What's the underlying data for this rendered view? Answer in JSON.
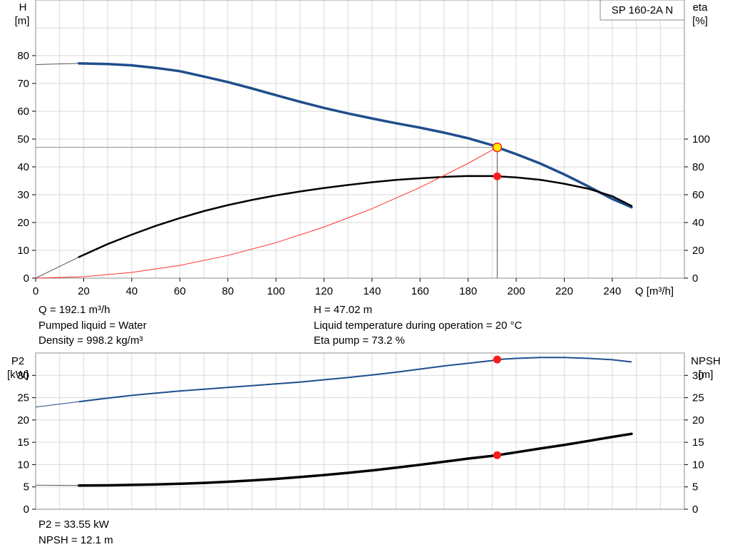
{
  "product_label": "SP 160-2A N",
  "colors": {
    "head_curve": "#1f4e8c",
    "p2_curve": "#1f4e8c",
    "efficiency_curve": "#000000",
    "npsh_curve": "#000000",
    "system_curve": "#ff3030",
    "duty_marker": "#ff1a1a",
    "duty_head_marker_fill": "#ffee00",
    "grid": "#d9d9d9",
    "frame": "#8c8c8c"
  },
  "top_info": {
    "left": [
      "Q = 192.1 m³/h",
      "Pumped liquid = Water",
      "Density = 998.2 kg/m³"
    ],
    "right": [
      "H = 47.02 m",
      "Liquid temperature during operation = 20 °C",
      "Eta pump = 73.2 %"
    ]
  },
  "bottom_info": [
    "P2 = 33.55 kW",
    "NPSH = 12.1 m"
  ],
  "chart_data": [
    {
      "type": "line",
      "panel": "upper",
      "x_axis": {
        "label": "Q [m³/h]",
        "lim": [
          0,
          270
        ],
        "ticks": [
          0,
          20,
          40,
          60,
          80,
          100,
          120,
          140,
          160,
          180,
          200,
          220,
          240
        ]
      },
      "y_axis_left": {
        "label": [
          "H",
          "[m]"
        ],
        "lim": [
          0,
          100
        ],
        "ticks": [
          0,
          10,
          20,
          30,
          40,
          50,
          60,
          70,
          80
        ]
      },
      "y_axis_right": {
        "label": [
          "eta",
          "[%]"
        ],
        "lim": [
          0,
          200
        ],
        "ticks": [
          0,
          20,
          40,
          60,
          80,
          100
        ]
      },
      "grid": true,
      "series": [
        {
          "id": "head",
          "axis": "left",
          "x": [
            0,
            18,
            30,
            40,
            50,
            60,
            70,
            80,
            90,
            100,
            110,
            120,
            130,
            140,
            150,
            160,
            170,
            180,
            190,
            192.1,
            200,
            210,
            220,
            230,
            240,
            248
          ],
          "y": [
            76.8,
            77.2,
            77.0,
            76.5,
            75.6,
            74.4,
            72.5,
            70.5,
            68.2,
            65.8,
            63.4,
            61.2,
            59.2,
            57.4,
            55.7,
            54.1,
            52.3,
            50.3,
            47.8,
            47.02,
            44.6,
            41.2,
            37.3,
            33.0,
            28.5,
            25.5
          ]
        },
        {
          "id": "efficiency",
          "axis": "right",
          "x": [
            0,
            18,
            30,
            40,
            50,
            60,
            70,
            80,
            90,
            100,
            110,
            120,
            130,
            140,
            150,
            160,
            170,
            180,
            190,
            192.1,
            200,
            210,
            220,
            230,
            240,
            248
          ],
          "y": [
            0,
            15.2,
            24.5,
            31.3,
            37.6,
            43.2,
            48.2,
            52.5,
            56.2,
            59.5,
            62.3,
            64.8,
            67.0,
            69.0,
            70.6,
            71.8,
            72.8,
            73.5,
            73.4,
            73.2,
            72.4,
            70.7,
            67.9,
            64.3,
            58.9,
            51.9
          ]
        },
        {
          "id": "system_curve",
          "axis": "left",
          "x": [
            0,
            20,
            40,
            60,
            80,
            100,
            120,
            140,
            160,
            180,
            192.1
          ],
          "y": [
            0,
            0.51,
            2.04,
            4.59,
            8.16,
            12.74,
            18.35,
            24.98,
            32.62,
            41.29,
            47.02
          ]
        }
      ],
      "duty_point": {
        "q": 192.1,
        "head": 47.02,
        "eta": 73.2
      }
    },
    {
      "type": "line",
      "panel": "lower",
      "x_axis": {
        "lim": [
          0,
          270
        ],
        "ticks": [
          0,
          20,
          40,
          60,
          80,
          100,
          120,
          140,
          160,
          180,
          200,
          220,
          240
        ]
      },
      "y_axis_left": {
        "label": [
          "P2",
          "[kW]"
        ],
        "lim": [
          0,
          35
        ],
        "ticks": [
          0,
          5,
          10,
          15,
          20,
          25,
          30
        ]
      },
      "y_axis_right": {
        "label": [
          "NPSH",
          "[m]"
        ],
        "lim": [
          0,
          35
        ],
        "ticks": [
          0,
          5,
          10,
          15,
          20,
          25,
          30
        ]
      },
      "grid": true,
      "series": [
        {
          "id": "p2",
          "axis": "left",
          "x": [
            0,
            18,
            30,
            40,
            50,
            60,
            70,
            80,
            90,
            100,
            110,
            120,
            130,
            140,
            150,
            160,
            170,
            180,
            190,
            192.1,
            200,
            210,
            220,
            230,
            240,
            248
          ],
          "y": [
            22.9,
            24.1,
            24.9,
            25.5,
            26.0,
            26.5,
            26.9,
            27.3,
            27.7,
            28.1,
            28.5,
            29.0,
            29.5,
            30.1,
            30.7,
            31.4,
            32.1,
            32.7,
            33.3,
            33.55,
            33.8,
            34.0,
            34.0,
            33.8,
            33.5,
            33.0
          ]
        },
        {
          "id": "npsh",
          "axis": "right",
          "x": [
            0,
            18,
            30,
            40,
            50,
            60,
            70,
            80,
            90,
            100,
            110,
            120,
            130,
            140,
            150,
            160,
            170,
            180,
            190,
            192.1,
            200,
            210,
            220,
            230,
            240,
            248
          ],
          "y": [
            5.4,
            5.3,
            5.35,
            5.45,
            5.55,
            5.7,
            5.9,
            6.15,
            6.45,
            6.8,
            7.2,
            7.65,
            8.15,
            8.7,
            9.3,
            9.95,
            10.65,
            11.35,
            11.95,
            12.1,
            12.75,
            13.6,
            14.4,
            15.3,
            16.2,
            16.9
          ]
        }
      ],
      "duty_point": {
        "q": 192.1,
        "p2": 33.55,
        "npsh": 12.1
      }
    }
  ]
}
